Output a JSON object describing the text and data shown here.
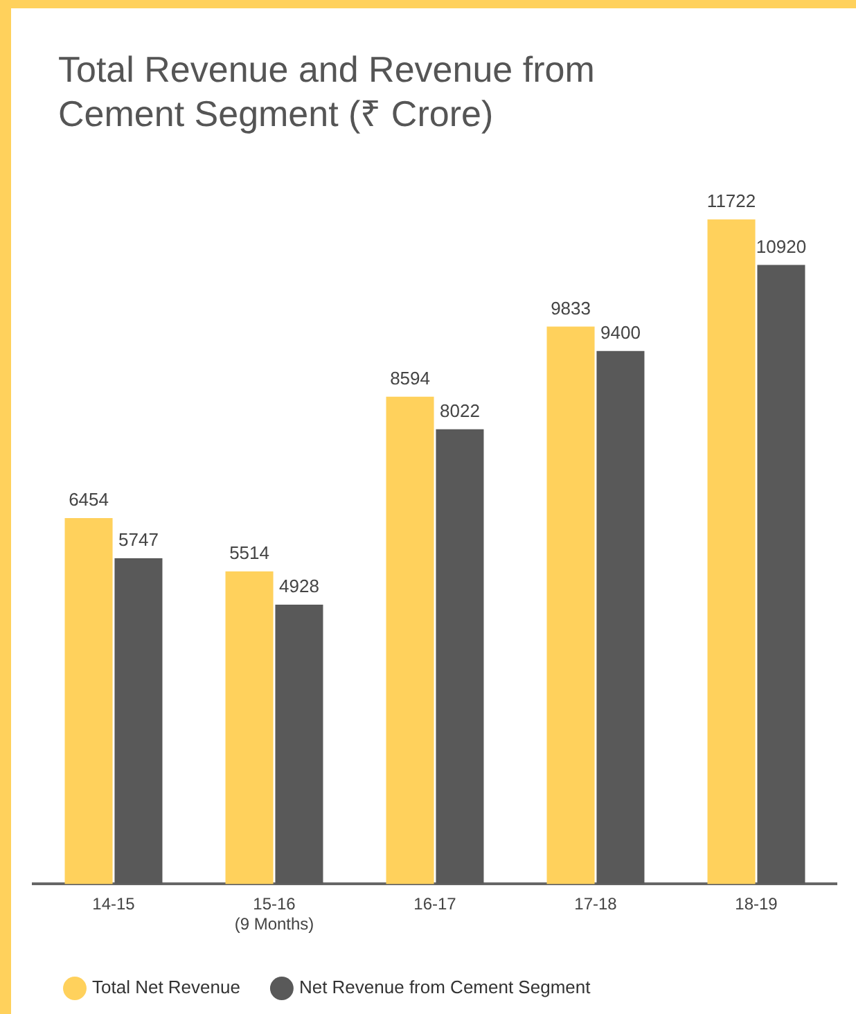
{
  "chart_data": {
    "type": "bar",
    "title": "Total Revenue and Revenue from Cement Segment (₹ Crore)",
    "categories": [
      "14-15",
      "15-16\n(9 Months)",
      "16-17",
      "17-18",
      "18-19"
    ],
    "series": [
      {
        "name": "Total Net Revenue",
        "color": "#ffd15c",
        "values": [
          6454,
          5514,
          8594,
          9833,
          11722
        ]
      },
      {
        "name": "Net Revenue from Cement Segment",
        "color": "#595959",
        "values": [
          5747,
          4928,
          8022,
          9400,
          10920
        ]
      }
    ],
    "data_labels": true,
    "grid": false,
    "legend": "bottom"
  }
}
